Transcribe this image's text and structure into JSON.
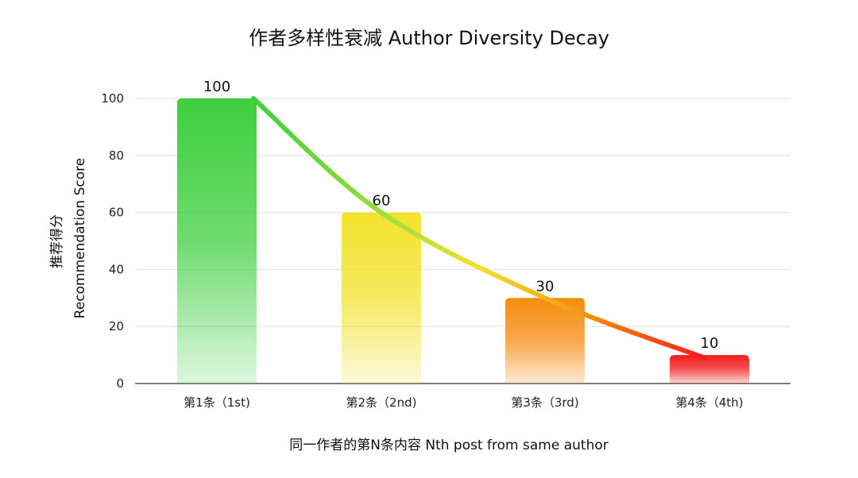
{
  "chart_data": {
    "type": "bar",
    "title": "作者多样性衰减 Author Diversity Decay",
    "xlabel": "同一作者的第N条内容 Nth post from same author",
    "ylabel_zh": "推荐得分",
    "ylabel_en": "Recommendation Score",
    "categories": [
      "第1条（1st)",
      "第2条（2nd)",
      "第3条（3rd)",
      "第4条（4th)"
    ],
    "values": [
      100,
      60,
      30,
      10
    ],
    "value_labels": [
      "100",
      "60",
      "30",
      "10"
    ],
    "ylim": [
      0,
      100
    ],
    "yticks": [
      0,
      20,
      40,
      60,
      80,
      100
    ],
    "ytick_labels": [
      "0",
      "20",
      "40",
      "60",
      "80",
      "100"
    ],
    "grid": true,
    "legend": "none",
    "bar_colors": [
      "#3ecf3e",
      "#f2e22c",
      "#f58d0f",
      "#f21b1b"
    ],
    "curve": "decay curve through bar tops",
    "curve_colors": [
      "#3ecf3e",
      "#f2e22c",
      "#f58d0f",
      "#f21b1b"
    ]
  }
}
